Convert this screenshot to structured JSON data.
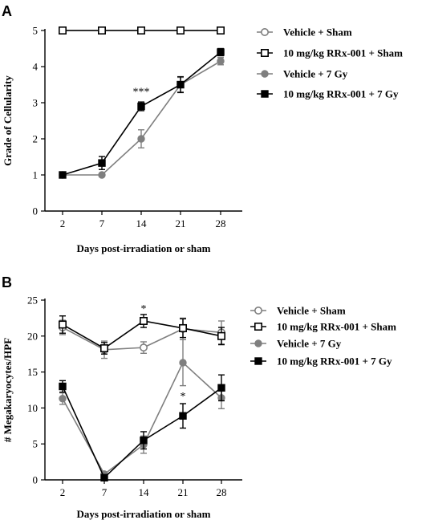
{
  "colors": {
    "gray": "#7f7f7f",
    "black": "#000000"
  },
  "chart_data": [
    {
      "type": "line",
      "panel_label": "A",
      "xlabel": "Days post-irradiation or sham",
      "ylabel": "Grade of Cellularity",
      "x": [
        2,
        7,
        14,
        21,
        28
      ],
      "ylim": [
        0,
        5
      ],
      "yticks": [
        0,
        1,
        2,
        3,
        4,
        5
      ],
      "grid": false,
      "legend_position": "right",
      "series": [
        {
          "name": "Vehicle + Sham",
          "marker": "open-circle",
          "color": "#7f7f7f",
          "values": [
            5,
            5,
            5,
            5,
            5
          ],
          "error": [
            0,
            0,
            0,
            0,
            0
          ]
        },
        {
          "name": "10 mg/kg RRx-001 + Sham",
          "marker": "open-square",
          "color": "#000000",
          "values": [
            5,
            5,
            5,
            5,
            5
          ],
          "error": [
            0,
            0,
            0,
            0,
            0
          ]
        },
        {
          "name": "Vehicle + 7 Gy",
          "marker": "filled-circle",
          "color": "#7f7f7f",
          "values": [
            1,
            1,
            2,
            3.5,
            4.15
          ],
          "error": [
            0,
            0,
            0.25,
            0.2,
            0.1
          ]
        },
        {
          "name": "10 mg/kg RRx-001 + 7 Gy",
          "marker": "filled-square",
          "color": "#000000",
          "values": [
            1,
            1.33,
            2.9,
            3.5,
            4.4
          ],
          "error": [
            0,
            0.18,
            0.12,
            0.22,
            0.1
          ]
        }
      ],
      "annotations": [
        {
          "x": 14,
          "y": 3.3,
          "text": "***"
        }
      ]
    },
    {
      "type": "line",
      "panel_label": "B",
      "xlabel": "Days post-irradiation or sham",
      "ylabel": "# Megakaryocytes/HPF",
      "x": [
        2,
        7,
        14,
        21,
        28
      ],
      "ylim": [
        0,
        25
      ],
      "yticks": [
        0,
        5,
        10,
        15,
        20,
        25
      ],
      "grid": false,
      "legend_position": "right",
      "series": [
        {
          "name": "Vehicle + Sham",
          "marker": "open-circle",
          "color": "#7f7f7f",
          "values": [
            21.2,
            18.1,
            18.4,
            21.0,
            20.5
          ],
          "error": [
            1.0,
            1.2,
            0.8,
            1.5,
            1.6
          ]
        },
        {
          "name": "10 mg/kg RRx-001 + Sham",
          "marker": "open-square",
          "color": "#000000",
          "values": [
            21.6,
            18.3,
            22.1,
            21.1,
            20.0
          ],
          "error": [
            1.2,
            0.8,
            0.9,
            1.3,
            1.2
          ]
        },
        {
          "name": "Vehicle + 7 Gy",
          "marker": "filled-circle",
          "color": "#7f7f7f",
          "values": [
            11.3,
            0.8,
            4.9,
            16.3,
            11.4
          ],
          "error": [
            0.8,
            0.3,
            1.2,
            3.2,
            1.5
          ]
        },
        {
          "name": "10 mg/kg RRx-001 + 7 Gy",
          "marker": "filled-square",
          "color": "#000000",
          "values": [
            13.0,
            0.3,
            5.5,
            8.9,
            12.8
          ],
          "error": [
            0.8,
            0.2,
            1.2,
            1.7,
            1.8
          ]
        }
      ],
      "annotations": [
        {
          "x": 14,
          "y": 23.8,
          "text": "*"
        },
        {
          "x": 21,
          "y": 11.6,
          "text": "*"
        }
      ]
    }
  ]
}
